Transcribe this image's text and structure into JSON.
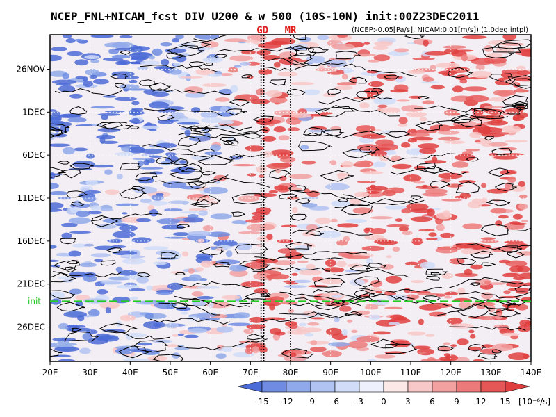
{
  "chart_data": {
    "type": "heatmap",
    "title": "NCEP_FNL+NICAM_fcst DIV U200 & w 500 (10S-10N) init:00Z23DEC2011",
    "subtitle": "(NCEP:-0.05[Pa/s], NICAM:0.01[m/s]) (1.0deg intpl)",
    "x_axis": {
      "range": [
        20,
        140
      ],
      "ticks": [
        20,
        30,
        40,
        50,
        60,
        70,
        80,
        90,
        100,
        110,
        120,
        130,
        140
      ],
      "tick_labels": [
        "20E",
        "30E",
        "40E",
        "50E",
        "60E",
        "70E",
        "80E",
        "90E",
        "100E",
        "110E",
        "120E",
        "130E",
        "140E"
      ]
    },
    "y_axis": {
      "range": [
        "2011-11-22",
        "2011-12-30"
      ],
      "tick_dates": [
        "2011-11-26",
        "2011-12-01",
        "2011-12-06",
        "2011-12-11",
        "2011-12-16",
        "2011-12-21",
        "2011-12-26"
      ],
      "tick_labels": [
        "26NOV",
        "1DEC",
        "6DEC",
        "11DEC",
        "16DEC",
        "21DEC",
        "26DEC"
      ],
      "direction": "time increases downward"
    },
    "colorbar": {
      "levels": [
        -15,
        -12,
        -9,
        -6,
        -3,
        0,
        3,
        6,
        9,
        12,
        15
      ],
      "tick_labels": [
        "-15",
        "-12",
        "-9",
        "-6",
        "-3",
        "0",
        "3",
        "6",
        "9",
        "12",
        "15"
      ],
      "unit_label": "[10⁻⁶/s]",
      "colors": [
        "#4b6bd6",
        "#6f8ce2",
        "#90a9ea",
        "#b1c3f2",
        "#d0dcf8",
        "#eef1fd",
        "#fde8e8",
        "#f8c7c7",
        "#f2a0a0",
        "#ec7a7a",
        "#e55757",
        "#e03f3f"
      ]
    },
    "reference_lines": [
      {
        "label": "GD",
        "lon": 73.0,
        "style": "dotted-double",
        "color": "#000000"
      },
      {
        "label": "MR",
        "lon": 80.0,
        "style": "dotted",
        "color": "#000000"
      }
    ],
    "init_line": {
      "label": "init",
      "date": "2011-12-23",
      "color": "#1fcc1f",
      "style": "dashed"
    },
    "grid": "dotted-white",
    "contours": "black w500 contour lines"
  }
}
